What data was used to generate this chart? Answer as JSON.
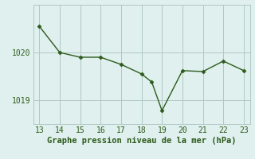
{
  "x": [
    13,
    14,
    15,
    16,
    17,
    18,
    18.5,
    19,
    20,
    21,
    22,
    23
  ],
  "y": [
    1020.55,
    1020.0,
    1019.9,
    1019.9,
    1019.75,
    1019.55,
    1019.38,
    1018.78,
    1019.62,
    1019.6,
    1019.82,
    1019.62
  ],
  "line_color": "#2d5a1b",
  "marker_color": "#2d5a1b",
  "bg_color": "#dff0ee",
  "grid_color": "#b0c8c4",
  "xlabel": "Graphe pression niveau de la mer (hPa)",
  "xlabel_color": "#2d5a1b",
  "xticks": [
    13,
    14,
    15,
    16,
    17,
    18,
    19,
    20,
    21,
    22,
    23
  ],
  "yticks": [
    1019,
    1020
  ],
  "ylim": [
    1018.5,
    1021.0
  ],
  "xlim": [
    12.7,
    23.3
  ],
  "tick_fontsize": 7,
  "xlabel_fontsize": 7.5
}
